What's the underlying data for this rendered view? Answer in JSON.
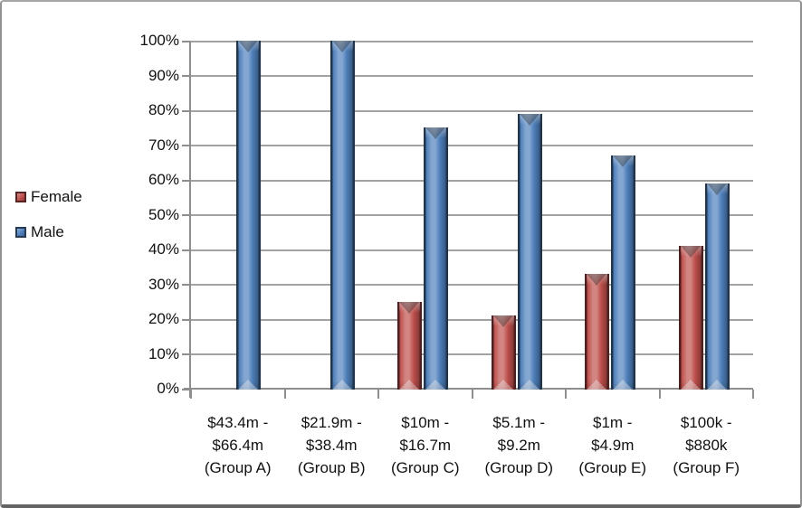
{
  "figure": {
    "background": "#ffffff",
    "border_color": "#919191"
  },
  "legend": {
    "items": [
      {
        "label": "Female",
        "color": "#C0504D"
      },
      {
        "label": "Male",
        "color": "#4F81BD"
      }
    ]
  },
  "chart_data": {
    "type": "bar",
    "title": "",
    "xlabel": "",
    "ylabel": "",
    "categories": [
      "$43.4m -\n$66.4m\n(Group A)",
      "$21.9m -\n$38.4m\n(Group B)",
      "$10m -\n$16.7m\n(Group C)",
      "$5.1m -\n$9.2m\n(Group D)",
      "$1m -\n$4.9m\n(Group E)",
      "$100k -\n$880k\n(Group F)"
    ],
    "series": [
      {
        "name": "Female",
        "color": "#C0504D",
        "values": [
          0,
          0,
          25,
          21,
          33,
          41
        ]
      },
      {
        "name": "Male",
        "color": "#4F81BD",
        "values": [
          100,
          100,
          75,
          79,
          67,
          59
        ]
      }
    ],
    "ylim": [
      0,
      100
    ],
    "ytick_step": 10,
    "ytick_labels": [
      "0%",
      "10%",
      "20%",
      "30%",
      "40%",
      "50%",
      "60%",
      "70%",
      "80%",
      "90%",
      "100%"
    ],
    "grid": true,
    "legend_position": "left",
    "gridline_color": "#a2a2a2",
    "axis_color": "#8e8e8e"
  }
}
